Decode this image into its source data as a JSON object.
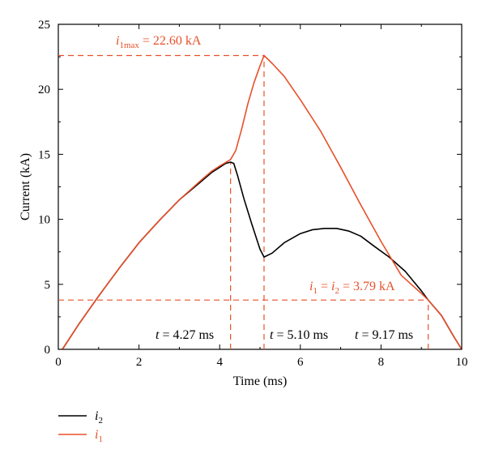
{
  "colors": {
    "i1": "#e8502a",
    "i2": "#000000",
    "ref_line": "#e8502a",
    "axis": "#000000"
  },
  "chart_data": {
    "type": "line",
    "xlabel": "Time (ms)",
    "ylabel": "Current (kA)",
    "xlim": [
      0,
      10
    ],
    "ylim": [
      0,
      25
    ],
    "x_ticks": [
      0,
      2,
      4,
      6,
      8,
      10
    ],
    "y_ticks": [
      0,
      5,
      10,
      15,
      20,
      25
    ],
    "grid": false,
    "legend_position": "bottom-left",
    "series": [
      {
        "id": "i2",
        "name": "i2",
        "sub": "2",
        "points": [
          [
            0.1,
            0
          ],
          [
            0.5,
            1.9
          ],
          [
            1,
            4.1
          ],
          [
            1.5,
            6.2
          ],
          [
            2,
            8.2
          ],
          [
            2.5,
            9.9
          ],
          [
            3,
            11.5
          ],
          [
            3.5,
            12.8
          ],
          [
            3.8,
            13.6
          ],
          [
            4.0,
            14.0
          ],
          [
            4.15,
            14.3
          ],
          [
            4.27,
            14.4
          ],
          [
            4.35,
            14.3
          ],
          [
            4.45,
            13.3
          ],
          [
            4.6,
            11.6
          ],
          [
            4.8,
            9.6
          ],
          [
            5.0,
            7.7
          ],
          [
            5.1,
            7.1
          ],
          [
            5.3,
            7.4
          ],
          [
            5.6,
            8.2
          ],
          [
            6.0,
            8.9
          ],
          [
            6.3,
            9.2
          ],
          [
            6.6,
            9.3
          ],
          [
            6.9,
            9.3
          ],
          [
            7.2,
            9.1
          ],
          [
            7.5,
            8.7
          ],
          [
            7.8,
            8.0
          ],
          [
            8.2,
            7.1
          ],
          [
            8.6,
            6.0
          ],
          [
            9.0,
            4.5
          ],
          [
            9.17,
            3.79
          ],
          [
            9.5,
            2.6
          ],
          [
            9.8,
            1.0
          ],
          [
            10.0,
            0
          ]
        ]
      },
      {
        "id": "i1",
        "name": "i1",
        "sub": "1",
        "points": [
          [
            0.1,
            0
          ],
          [
            0.5,
            1.9
          ],
          [
            1,
            4.1
          ],
          [
            1.5,
            6.2
          ],
          [
            2,
            8.2
          ],
          [
            2.5,
            9.9
          ],
          [
            3,
            11.5
          ],
          [
            3.5,
            12.9
          ],
          [
            3.8,
            13.7
          ],
          [
            4.0,
            14.1
          ],
          [
            4.27,
            14.6
          ],
          [
            4.4,
            15.3
          ],
          [
            4.55,
            17.0
          ],
          [
            4.7,
            18.9
          ],
          [
            4.85,
            20.5
          ],
          [
            5.0,
            21.8
          ],
          [
            5.1,
            22.6
          ],
          [
            5.3,
            22.0
          ],
          [
            5.6,
            21.0
          ],
          [
            6.0,
            19.2
          ],
          [
            6.5,
            16.8
          ],
          [
            7.0,
            14.0
          ],
          [
            7.5,
            11.1
          ],
          [
            8.0,
            8.3
          ],
          [
            8.5,
            5.7
          ],
          [
            9.0,
            4.3
          ],
          [
            9.17,
            3.79
          ],
          [
            9.5,
            2.6
          ],
          [
            9.8,
            1.0
          ],
          [
            10.0,
            0
          ]
        ]
      }
    ],
    "reference_lines": [
      {
        "kind": "vertical",
        "x": 4.27,
        "y_to": 14.4
      },
      {
        "kind": "vertical",
        "x": 5.1,
        "y_to": 22.6
      },
      {
        "kind": "vertical",
        "x": 9.17,
        "y_to": 3.79
      },
      {
        "kind": "horizontal",
        "y": 22.6,
        "x_to": 5.1
      },
      {
        "kind": "horizontal",
        "y": 3.79,
        "x_to": 9.17
      }
    ],
    "annotations": {
      "i1max": {
        "var": "i",
        "sub": "1max",
        "rest": " = 22.60 kA"
      },
      "equal": {
        "var1": "i",
        "sub1": "1",
        "eq": " = ",
        "var2": "i",
        "sub2": "2",
        "rest": " = 3.79 kA"
      },
      "t1": {
        "var": "t",
        "rest": " = 4.27 ms"
      },
      "t2": {
        "var": "t",
        "rest": " = 5.10 ms"
      },
      "t3": {
        "var": "t",
        "rest": " = 9.17 ms"
      }
    },
    "legend": [
      {
        "series": "i2",
        "var": "i",
        "sub": "2"
      },
      {
        "series": "i1",
        "var": "i",
        "sub": "1"
      }
    ]
  }
}
